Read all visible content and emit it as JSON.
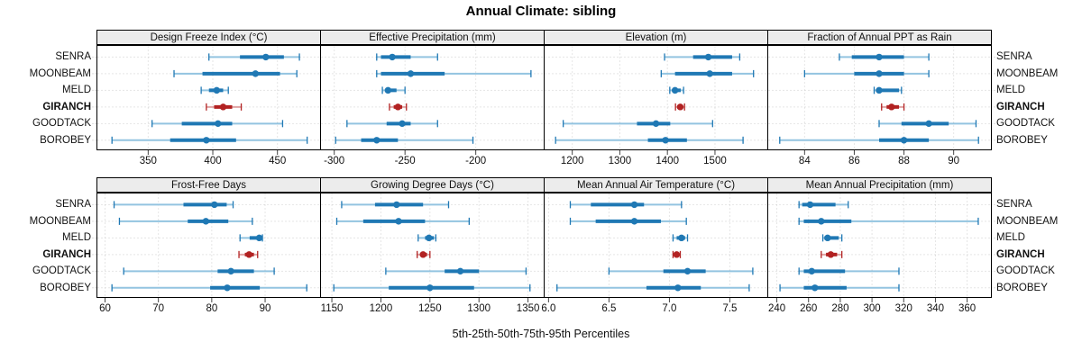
{
  "title": "Annual Climate: sibling",
  "caption": "5th-25th-50th-75th-95th Percentiles",
  "percentiles": [
    5,
    25,
    50,
    75,
    95
  ],
  "stations": [
    "SENRA",
    "MOONBEAM",
    "MELD",
    "GIRANCH",
    "GOODTACK",
    "BOROBEY"
  ],
  "highlight_station": "GIRANCH",
  "colors": {
    "series": "#1f78b4",
    "series_light": "#93c4e0",
    "highlight": "#b22222",
    "highlight_light": "#dfa3a3",
    "strip_bg": "#ececec",
    "grid": "#cccccc",
    "border": "#000000"
  },
  "chart_data": [
    {
      "type": "percentile-dotplot",
      "title": "Design Freeze Index (°C)",
      "xlim": [
        310,
        483
      ],
      "ticks": [
        {
          "v": 350,
          "label": "350"
        },
        {
          "v": 400,
          "label": "400"
        },
        {
          "v": 450,
          "label": "450"
        }
      ],
      "series": [
        {
          "name": "SENRA",
          "p": [
            397,
            421,
            441,
            455,
            467
          ]
        },
        {
          "name": "MOONBEAM",
          "p": [
            370,
            392,
            433,
            452,
            465
          ]
        },
        {
          "name": "MELD",
          "p": [
            391,
            397,
            403,
            408,
            412
          ]
        },
        {
          "name": "GIRANCH",
          "p": [
            395,
            401,
            408,
            415,
            422
          ]
        },
        {
          "name": "GOODTACK",
          "p": [
            353,
            376,
            404,
            415,
            454
          ]
        },
        {
          "name": "BOROBEY",
          "p": [
            322,
            367,
            395,
            418,
            473
          ]
        }
      ]
    },
    {
      "type": "percentile-dotplot",
      "title": "Effective Precipitation (mm)",
      "xlim": [
        -310,
        -152
      ],
      "ticks": [
        {
          "v": -300,
          "label": "-300"
        },
        {
          "v": -250,
          "label": "-250"
        },
        {
          "v": -200,
          "label": "-200"
        }
      ],
      "series": [
        {
          "name": "SENRA",
          "p": [
            -270,
            -267,
            -259,
            -246,
            -227
          ]
        },
        {
          "name": "MOONBEAM",
          "p": [
            -270,
            -267,
            -246,
            -222,
            -161
          ]
        },
        {
          "name": "MELD",
          "p": [
            -266,
            -264,
            -262,
            -256,
            -250
          ]
        },
        {
          "name": "GIRANCH",
          "p": [
            -261,
            -258,
            -255,
            -252,
            -249
          ]
        },
        {
          "name": "GOODTACK",
          "p": [
            -291,
            -263,
            -252,
            -246,
            -227
          ]
        },
        {
          "name": "BOROBEY",
          "p": [
            -299,
            -281,
            -270,
            -255,
            -202
          ]
        }
      ]
    },
    {
      "type": "percentile-dotplot",
      "title": "Elevation (m)",
      "xlim": [
        1140,
        1610
      ],
      "ticks": [
        {
          "v": 1200,
          "label": "1200"
        },
        {
          "v": 1300,
          "label": "1300"
        },
        {
          "v": 1400,
          "label": "1400"
        },
        {
          "v": 1500,
          "label": "1500"
        }
      ],
      "series": [
        {
          "name": "SENRA",
          "p": [
            1394,
            1454,
            1486,
            1536,
            1552
          ]
        },
        {
          "name": "MOONBEAM",
          "p": [
            1387,
            1416,
            1489,
            1536,
            1581
          ]
        },
        {
          "name": "MELD",
          "p": [
            1405,
            1412,
            1416,
            1428,
            1434
          ]
        },
        {
          "name": "GIRANCH",
          "p": [
            1417,
            1421,
            1427,
            1431,
            1436
          ]
        },
        {
          "name": "GOODTACK",
          "p": [
            1181,
            1336,
            1376,
            1406,
            1495
          ]
        },
        {
          "name": "BOROBEY",
          "p": [
            1165,
            1359,
            1396,
            1441,
            1559
          ]
        }
      ]
    },
    {
      "type": "percentile-dotplot",
      "title": "Fraction of Annual PPT as Rain",
      "xlim": [
        82.5,
        91.5
      ],
      "ticks": [
        {
          "v": 84,
          "label": "84"
        },
        {
          "v": 86,
          "label": "86"
        },
        {
          "v": 88,
          "label": "88"
        },
        {
          "v": 90,
          "label": "90"
        }
      ],
      "series": [
        {
          "name": "SENRA",
          "p": [
            85.4,
            85.9,
            87.0,
            88.0,
            89.0
          ]
        },
        {
          "name": "MOONBEAM",
          "p": [
            84.0,
            86.0,
            87.0,
            88.0,
            89.0
          ]
        },
        {
          "name": "MELD",
          "p": [
            86.8,
            86.9,
            87.0,
            87.8,
            87.9
          ]
        },
        {
          "name": "GIRANCH",
          "p": [
            87.1,
            87.3,
            87.5,
            87.8,
            88.0
          ]
        },
        {
          "name": "GOODTACK",
          "p": [
            87.0,
            87.9,
            89.0,
            89.8,
            90.9
          ]
        },
        {
          "name": "BOROBEY",
          "p": [
            83.0,
            87.0,
            88.0,
            89.0,
            91.0
          ]
        }
      ]
    },
    {
      "type": "percentile-dotplot",
      "title": "Frost-Free Days",
      "xlim": [
        58.4,
        100.3
      ],
      "ticks": [
        {
          "v": 60,
          "label": "60"
        },
        {
          "v": 70,
          "label": "70"
        },
        {
          "v": 80,
          "label": "80"
        },
        {
          "v": 90,
          "label": "90"
        }
      ],
      "series": [
        {
          "name": "SENRA",
          "p": [
            61.7,
            74.7,
            80.5,
            82.8,
            84.0
          ]
        },
        {
          "name": "MOONBEAM",
          "p": [
            62.7,
            75.5,
            78.9,
            83.1,
            87.6
          ]
        },
        {
          "name": "MELD",
          "p": [
            85.3,
            87.1,
            88.9,
            89.3,
            89.5
          ]
        },
        {
          "name": "GIRANCH",
          "p": [
            85.1,
            86.2,
            87.0,
            87.9,
            88.6
          ]
        },
        {
          "name": "GOODTACK",
          "p": [
            63.5,
            81.1,
            83.6,
            87.9,
            91.7
          ]
        },
        {
          "name": "BOROBEY",
          "p": [
            61.3,
            79.7,
            82.9,
            89.0,
            97.8
          ]
        }
      ]
    },
    {
      "type": "percentile-dotplot",
      "title": "Growing Degree Days (°C)",
      "xlim": [
        1138,
        1366
      ],
      "ticks": [
        {
          "v": 1150,
          "label": "1150"
        },
        {
          "v": 1200,
          "label": "1200"
        },
        {
          "v": 1250,
          "label": "1250"
        },
        {
          "v": 1300,
          "label": "1300"
        },
        {
          "v": 1350,
          "label": "1350"
        }
      ],
      "series": [
        {
          "name": "SENRA",
          "p": [
            1160,
            1194,
            1216,
            1243,
            1269
          ]
        },
        {
          "name": "MOONBEAM",
          "p": [
            1155,
            1182,
            1218,
            1245,
            1290
          ]
        },
        {
          "name": "MELD",
          "p": [
            1238,
            1245,
            1249,
            1254,
            1256
          ]
        },
        {
          "name": "GIRANCH",
          "p": [
            1237,
            1240,
            1243,
            1247,
            1250
          ]
        },
        {
          "name": "GOODTACK",
          "p": [
            1205,
            1265,
            1281,
            1300,
            1348
          ]
        },
        {
          "name": "BOROBEY",
          "p": [
            1152,
            1208,
            1250,
            1295,
            1352
          ]
        }
      ]
    },
    {
      "type": "percentile-dotplot",
      "title": "Mean Annual Air Temperature (°C)",
      "xlim": [
        5.96,
        7.81
      ],
      "ticks": [
        {
          "v": 6.0,
          "label": "6.0"
        },
        {
          "v": 6.5,
          "label": "6.5"
        },
        {
          "v": 7.0,
          "label": "7.0"
        },
        {
          "v": 7.5,
          "label": "7.5"
        }
      ],
      "series": [
        {
          "name": "SENRA",
          "p": [
            6.18,
            6.35,
            6.71,
            6.79,
            7.1
          ]
        },
        {
          "name": "MOONBEAM",
          "p": [
            6.18,
            6.39,
            6.71,
            6.93,
            7.14
          ]
        },
        {
          "name": "MELD",
          "p": [
            7.03,
            7.06,
            7.1,
            7.13,
            7.15
          ]
        },
        {
          "name": "GIRANCH",
          "p": [
            7.03,
            7.04,
            7.06,
            7.08,
            7.09
          ]
        },
        {
          "name": "GOODTACK",
          "p": [
            6.5,
            6.95,
            7.15,
            7.3,
            7.69
          ]
        },
        {
          "name": "BOROBEY",
          "p": [
            6.07,
            6.81,
            7.07,
            7.26,
            7.66
          ]
        }
      ]
    },
    {
      "type": "percentile-dotplot",
      "title": "Mean Annual Precipitation (mm)",
      "xlim": [
        234,
        375
      ],
      "ticks": [
        {
          "v": 240,
          "label": "240"
        },
        {
          "v": 260,
          "label": "260"
        },
        {
          "v": 280,
          "label": "280"
        },
        {
          "v": 300,
          "label": "300"
        },
        {
          "v": 320,
          "label": "320"
        },
        {
          "v": 340,
          "label": "340"
        },
        {
          "v": 360,
          "label": "360"
        }
      ],
      "series": [
        {
          "name": "SENRA",
          "p": [
            254,
            256,
            261,
            277,
            285
          ]
        },
        {
          "name": "MOONBEAM",
          "p": [
            254,
            257,
            268,
            287,
            367
          ]
        },
        {
          "name": "MELD",
          "p": [
            269,
            270,
            272,
            279,
            281
          ]
        },
        {
          "name": "GIRANCH",
          "p": [
            268,
            271,
            274,
            278,
            281
          ]
        },
        {
          "name": "GOODTACK",
          "p": [
            254,
            257,
            262,
            283,
            317
          ]
        },
        {
          "name": "BOROBEY",
          "p": [
            242,
            257,
            264,
            284,
            317
          ]
        }
      ]
    }
  ]
}
